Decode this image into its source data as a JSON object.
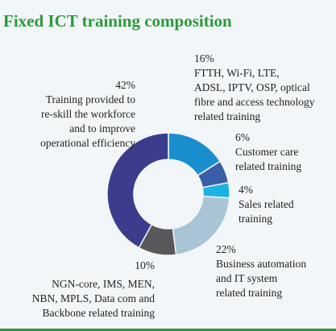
{
  "chart_data": {
    "type": "donut",
    "title": "Fixed ICT training composition",
    "categories": [
      "FTTH, Wi-Fi, LTE,\nADSL, IPTV, OSP, optical\nfibre and access technology\nrelated training",
      "Customer care\nrelated training",
      "Sales related\ntraining",
      "Business automation\nand IT system\nrelated training",
      "NGN-core, IMS, MEN,\nNBN, MPLS, Data com and\nBackbone related training",
      "Training provided to\nre-skill the workforce\nand to improve\noperational efficiency"
    ],
    "values": [
      16,
      6,
      4,
      22,
      10,
      42
    ],
    "value_labels": [
      "16%",
      "6%",
      "4%",
      "22%",
      "10%",
      "42%"
    ],
    "colors": [
      "#1b8ed0",
      "#3a5ea8",
      "#1ab2e2",
      "#a9c5d5",
      "#58585a",
      "#3b3d8c"
    ]
  }
}
